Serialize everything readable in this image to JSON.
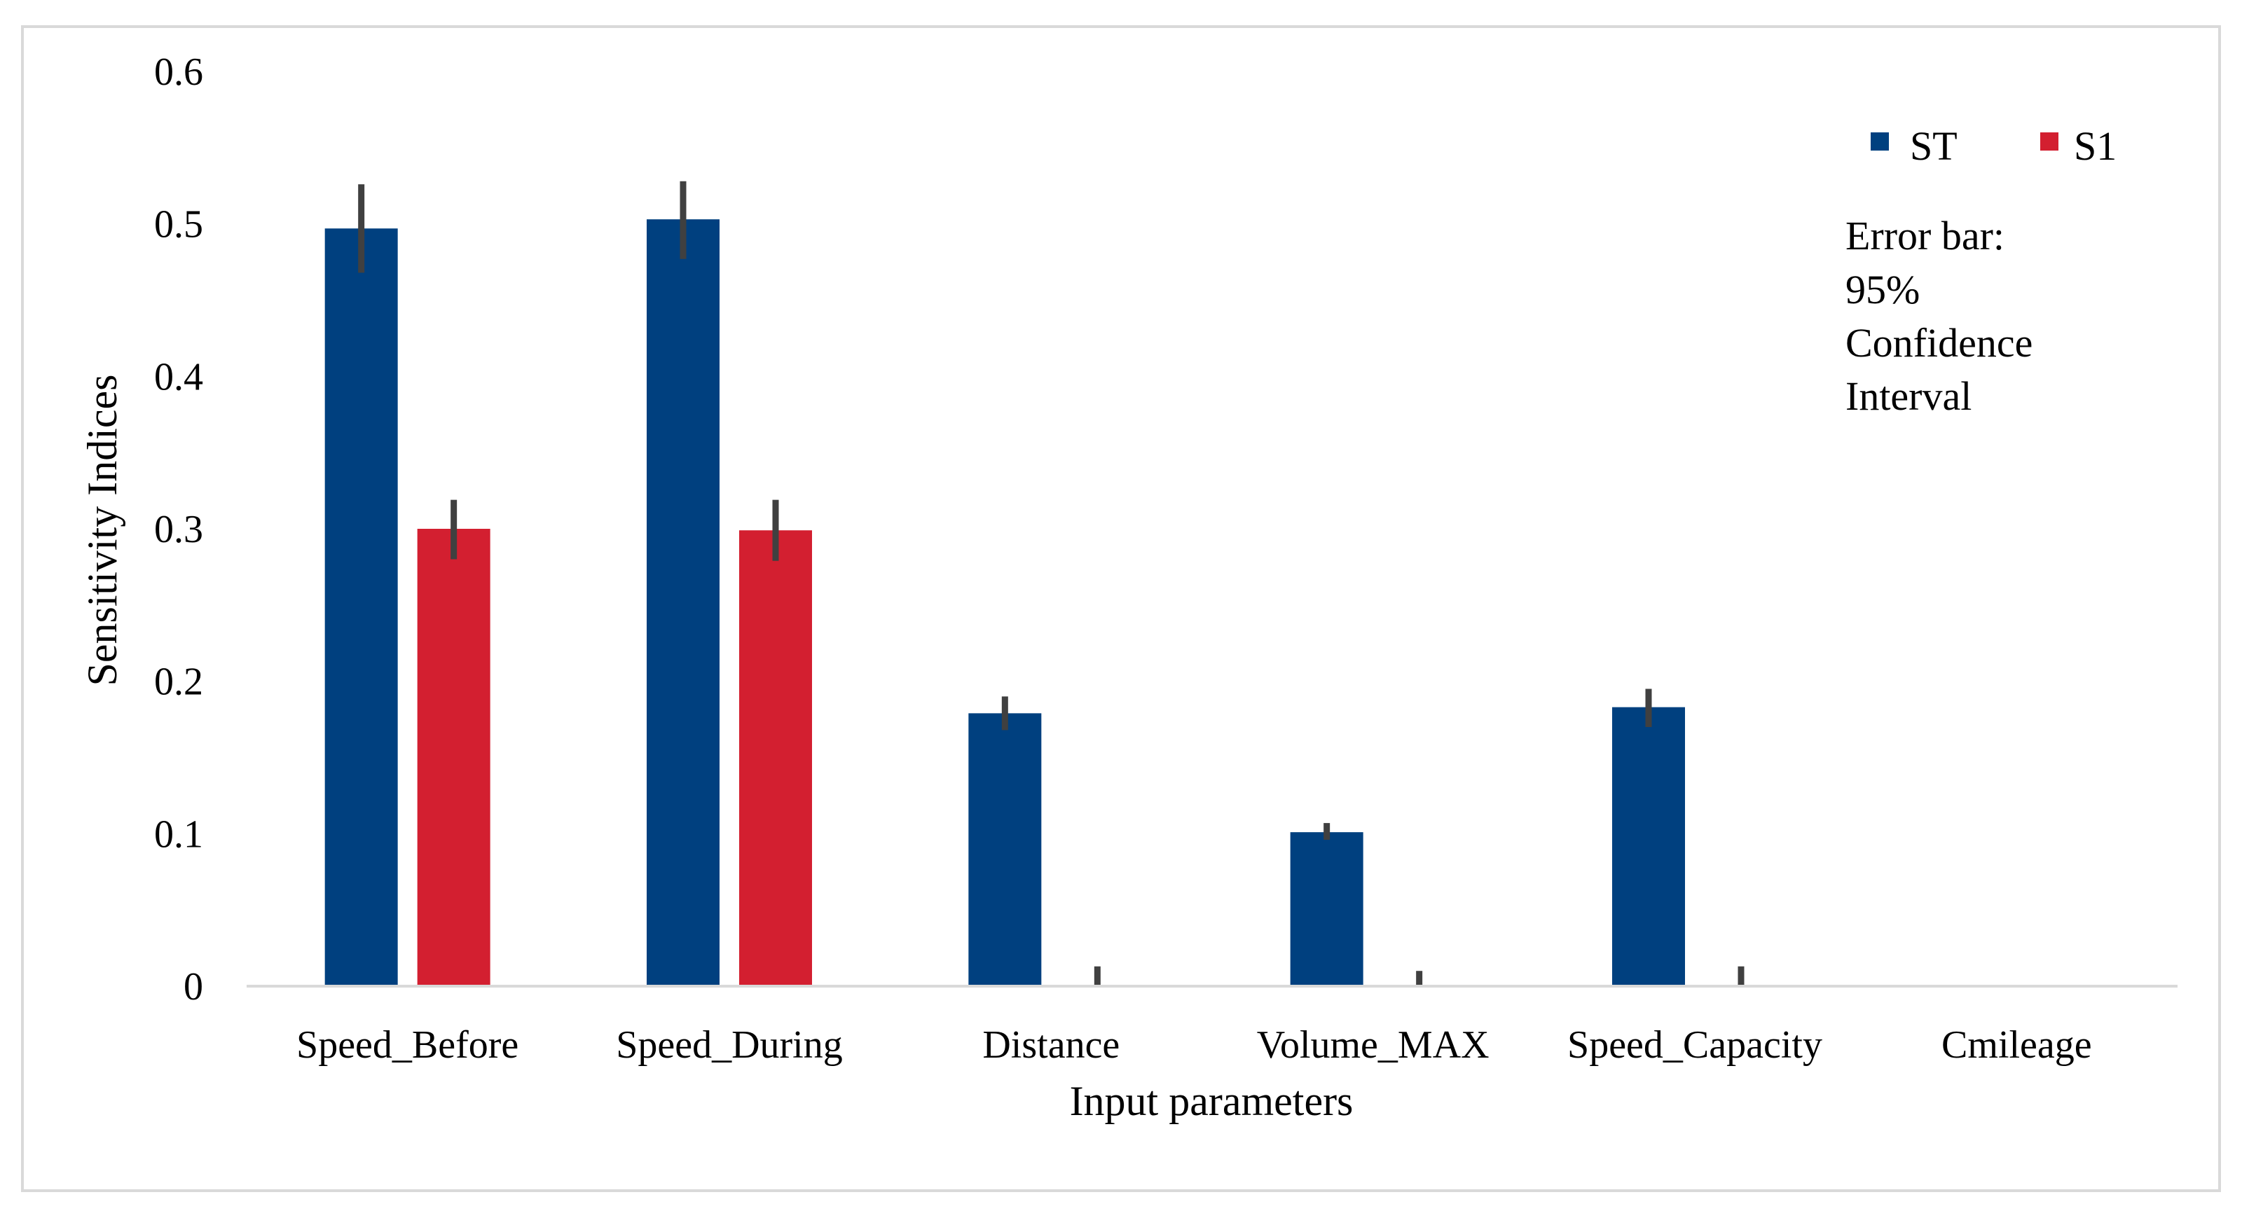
{
  "chart_data": {
    "type": "bar",
    "title": "",
    "xlabel": "Input parameters",
    "ylabel": "Sensitivity Indices",
    "ylim": [
      0,
      0.6
    ],
    "yticks": [
      "0",
      "0.1",
      "0.2",
      "0.3",
      "0.4",
      "0.5",
      "0.6"
    ],
    "categories": [
      "Speed_Before",
      "Speed_During",
      "Distance",
      "Volume_MAX",
      "Speed_Capacity",
      "Cmileage"
    ],
    "series": [
      {
        "name": "ST",
        "color": "#00407f",
        "values": [
          0.497,
          0.503,
          0.179,
          0.101,
          0.183,
          0
        ],
        "error_low": [
          0.468,
          0.477,
          0.168,
          0.096,
          0.17,
          null
        ],
        "error_high": [
          0.526,
          0.528,
          0.19,
          0.107,
          0.195,
          null
        ]
      },
      {
        "name": "S1",
        "color": "#d31f30",
        "values": [
          0.3,
          0.299,
          0,
          0,
          0,
          0
        ],
        "error_low": [
          0.28,
          0.279,
          0.0,
          0.0,
          0.0,
          null
        ],
        "error_high": [
          0.319,
          0.319,
          0.013,
          0.01,
          0.013,
          null
        ]
      }
    ],
    "legend_position": "top-right",
    "annotation_lines": [
      "Error bar:",
      "95%",
      "Confidence",
      "Interval"
    ],
    "error_bar_color": "#404040",
    "axis_color": "#d9d9d9",
    "grid": false
  }
}
